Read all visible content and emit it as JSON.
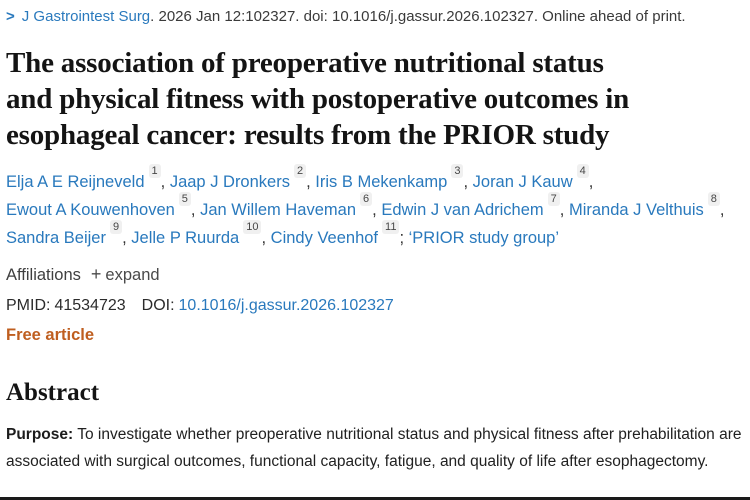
{
  "citation": {
    "chevron": ">",
    "journal": "J Gastrointest Surg",
    "rest": ". 2026 Jan 12:102327. doi: 10.1016/j.gassur.2026.102327. Online ahead of print."
  },
  "title": {
    "full": "The association of preoperative nutritional status and physical fitness with postoperative outcomes in esophageal cancer: results from the PRIOR study",
    "lines": [
      "The association of preoperative nutritional status",
      "and physical fitness with postoperative outcomes in",
      "esophageal cancer: results from the PRIOR study"
    ]
  },
  "authors": {
    "list": [
      {
        "name": "Elja A E Reijneveld",
        "sup": "1",
        "sep": ", "
      },
      {
        "name": "Jaap J Dronkers",
        "sup": "2",
        "sep": ", "
      },
      {
        "name": "Iris B Mekenkamp",
        "sup": "3",
        "sep": ", "
      },
      {
        "name": "Joran J Kauw",
        "sup": "4",
        "sep": ", "
      },
      {
        "name": "Ewout A Kouwenhoven",
        "sup": "5",
        "sep": ", "
      },
      {
        "name": "Jan Willem Haveman",
        "sup": "6",
        "sep": ", "
      },
      {
        "name": "Edwin J van Adrichem",
        "sup": "7",
        "sep": ", "
      },
      {
        "name": "Miranda J Velthuis",
        "sup": "8",
        "sep": ", "
      },
      {
        "name": "Sandra Beijer",
        "sup": "9",
        "sep": ", "
      },
      {
        "name": "Jelle P Ruurda",
        "sup": "10",
        "sep": ", "
      },
      {
        "name": "Cindy Veenhof",
        "sup": "11",
        "sep": ";"
      }
    ],
    "group": "‘PRIOR study group’"
  },
  "meta": {
    "affiliations_label": "Affiliations",
    "plus": "+",
    "expand_label": "expand",
    "pmid_label": "PMID:",
    "pmid_value": "41534723",
    "doi_label": "DOI:",
    "doi_value": "10.1016/j.gassur.2026.102327",
    "free_article": "Free article"
  },
  "abstract": {
    "heading": "Abstract",
    "purpose_label": "Purpose:",
    "purpose_text": " To investigate whether preoperative nutritional status and physical fitness after prehabilitation are associated with surgical outcomes, functional capacity, fatigue, and quality of life after esophagectomy."
  },
  "colors": {
    "link_blue": "#2979bd",
    "body_text": "#212121",
    "title_text": "#141414",
    "free_article_orange": "#bf5e1f",
    "badge_background": "#f0f0f0",
    "badge_text": "#474747",
    "bottom_bar": "#1a1a1a"
  }
}
